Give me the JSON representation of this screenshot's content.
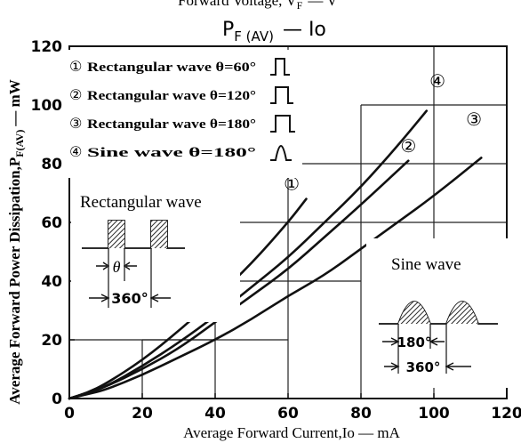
{
  "header_partial": "Forward Voltage, V",
  "header_partial_sub": "F",
  "header_partial_tail": "— V",
  "chart_data": {
    "type": "line",
    "title": "P",
    "title_sub": "F (AV)",
    "title_tail": "— Io",
    "xlabel": "Average Forward Current,Io — mA",
    "ylabel_main": "Average Forward Power Dissipation,P",
    "ylabel_sub": "F(AV)",
    "ylabel_unit": "— mW",
    "xlim": [
      0,
      120
    ],
    "ylim": [
      0,
      120
    ],
    "x_ticks": [
      0,
      20,
      40,
      60,
      80,
      100,
      120
    ],
    "y_ticks": [
      0,
      20,
      40,
      60,
      80,
      100,
      120
    ],
    "grid": true,
    "legend": [
      {
        "marker": "①",
        "text": "Rectangular wave θ=60°",
        "symbol": "rect-60"
      },
      {
        "marker": "②",
        "text": "Rectangular wave θ=120°",
        "symbol": "rect-120"
      },
      {
        "marker": "③",
        "text": "Rectangular wave θ=180°",
        "symbol": "rect-180"
      },
      {
        "marker": "④",
        "text": "Sine wave θ=180°",
        "symbol": "sine-180"
      }
    ],
    "series": [
      {
        "marker": "①",
        "x": [
          0,
          5,
          10,
          20,
          30,
          40,
          50,
          60,
          65
        ],
        "y": [
          0,
          2,
          5,
          13,
          23,
          34,
          46,
          60,
          68
        ]
      },
      {
        "marker": "②",
        "x": [
          0,
          5,
          10,
          20,
          30,
          40,
          50,
          60,
          70,
          80,
          93
        ],
        "y": [
          0,
          2,
          4,
          10,
          17,
          26,
          35,
          44,
          55,
          66,
          81
        ]
      },
      {
        "marker": "③",
        "x": [
          0,
          5,
          10,
          20,
          30,
          40,
          50,
          60,
          70,
          80,
          90,
          100,
          113
        ],
        "y": [
          0,
          1.5,
          3,
          8,
          14,
          20,
          27,
          35,
          42,
          51,
          60,
          69,
          82
        ]
      },
      {
        "marker": "④",
        "x": [
          0,
          5,
          10,
          20,
          30,
          40,
          50,
          60,
          70,
          80,
          90,
          98
        ],
        "y": [
          0,
          2,
          4,
          11,
          19,
          28,
          38,
          48,
          60,
          72,
          86,
          98
        ]
      }
    ],
    "series_label_positions": [
      {
        "marker": "①",
        "x": 61,
        "y": 71
      },
      {
        "marker": "②",
        "x": 93,
        "y": 84
      },
      {
        "marker": "③",
        "x": 111,
        "y": 93
      },
      {
        "marker": "④",
        "x": 101,
        "y": 106
      }
    ],
    "insets": {
      "rect_title": "Rectangular wave",
      "rect_theta": "θ",
      "rect_period": "360°",
      "sine_title": "Sine wave",
      "sine_half": "180°",
      "sine_period": "360°"
    }
  }
}
